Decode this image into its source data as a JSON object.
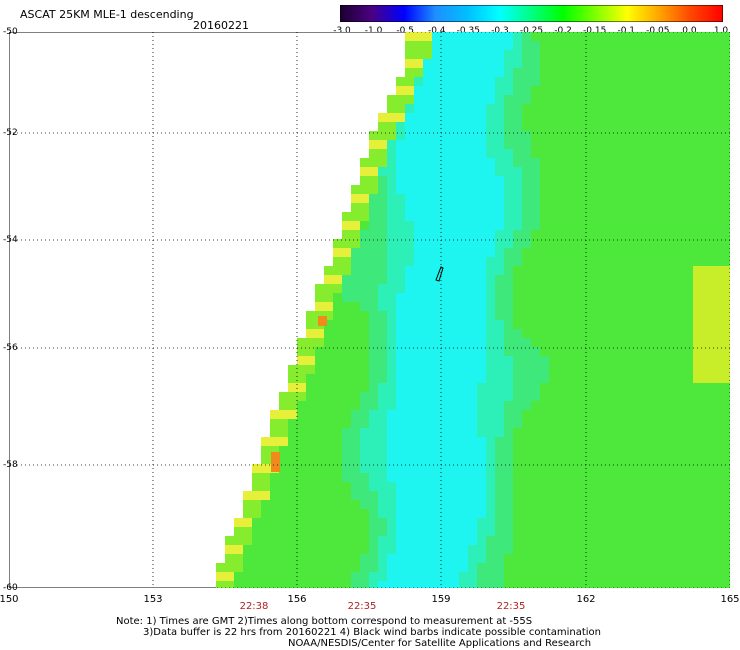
{
  "header": {
    "title": "ASCAT 25KM MLE-1 descending",
    "date": "20160221"
  },
  "colorbar": {
    "labels": [
      "-3.0",
      "-1.0",
      "-0.5",
      "-0.4",
      "-0.35",
      "-0.3",
      "-0.25",
      "-0.2",
      "-0.15",
      "-0.1",
      "-0.05",
      "0.0",
      "1.0"
    ],
    "colors": [
      "#1a0030",
      "#4b0082",
      "#0000ff",
      "#1e90ff",
      "#00bfff",
      "#00ffff",
      "#00ff80",
      "#00ff00",
      "#80ff00",
      "#ffff00",
      "#ffa500",
      "#ff4500",
      "#ff0000"
    ]
  },
  "axes": {
    "lat_labels": [
      "-50",
      "-52",
      "-54",
      "-56",
      "-58",
      "-60"
    ],
    "lon_labels": [
      "150",
      "153",
      "156",
      "159",
      "162",
      "165"
    ]
  },
  "times": [
    "22:38",
    "22:35",
    "22:35"
  ],
  "notes": {
    "line1": "Note: 1) Times are GMT 2)Times along bottom correspond to measurement at -55S",
    "line2": "3)Data buffer is 22 hrs from 20160221 4) Black wind barbs indicate possible contamination",
    "line3": "NOAA/NESDIS/Center for Satellite Applications and Research"
  }
}
